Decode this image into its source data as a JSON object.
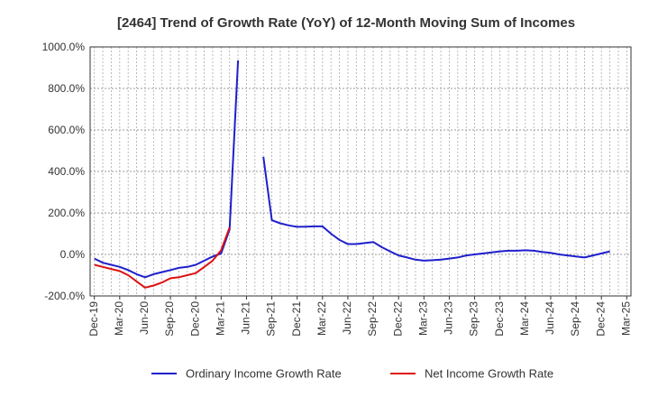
{
  "chart_data": {
    "type": "line",
    "title": "[2464]  Trend of Growth Rate (YoY) of 12-Month Moving Sum of Incomes",
    "xlabel": "",
    "ylabel": "",
    "ylim": [
      -200,
      1000
    ],
    "y_ticks": [
      -200,
      0,
      200,
      400,
      600,
      800,
      1000
    ],
    "y_tick_labels": [
      "-200.0%",
      "0.0%",
      "200.0%",
      "400.0%",
      "600.0%",
      "800.0%",
      "1000.0%"
    ],
    "x_tick_labels": [
      "Dec-19",
      "Mar-20",
      "Jun-20",
      "Sep-20",
      "Dec-20",
      "Mar-21",
      "Jun-21",
      "Sep-21",
      "Dec-21",
      "Mar-22",
      "Jun-22",
      "Sep-22",
      "Dec-22",
      "Mar-23",
      "Jun-23",
      "Sep-23",
      "Dec-23",
      "Mar-24",
      "Jun-24",
      "Sep-24",
      "Dec-24",
      "Mar-25"
    ],
    "grid": true,
    "legend_position": "bottom",
    "x": [
      "Dec-19",
      "Jan-20",
      "Feb-20",
      "Mar-20",
      "Apr-20",
      "May-20",
      "Jun-20",
      "Jul-20",
      "Aug-20",
      "Sep-20",
      "Oct-20",
      "Nov-20",
      "Dec-20",
      "Jan-21",
      "Feb-21",
      "Mar-21",
      "Apr-21",
      "May-21",
      "Jun-21",
      "Jul-21",
      "Aug-21",
      "Sep-21",
      "Oct-21",
      "Nov-21",
      "Dec-21",
      "Jan-22",
      "Feb-22",
      "Mar-22",
      "Apr-22",
      "May-22",
      "Jun-22",
      "Jul-22",
      "Aug-22",
      "Sep-22",
      "Oct-22",
      "Nov-22",
      "Dec-22",
      "Jan-23",
      "Feb-23",
      "Mar-23",
      "Apr-23",
      "May-23",
      "Jun-23",
      "Jul-23",
      "Aug-23",
      "Sep-23",
      "Oct-23",
      "Nov-23",
      "Dec-23",
      "Jan-24",
      "Feb-24",
      "Mar-24",
      "Apr-24",
      "May-24",
      "Jun-24",
      "Jul-24",
      "Aug-24",
      "Sep-24",
      "Oct-24",
      "Nov-24",
      "Dec-24",
      "Jan-25",
      "Feb-25",
      "Mar-25"
    ],
    "series": [
      {
        "name": "Ordinary Income Growth Rate",
        "color": "#1f1fcc",
        "values": [
          -20,
          -40,
          -50,
          -60,
          -75,
          -95,
          -110,
          -95,
          -85,
          -75,
          -65,
          -60,
          -50,
          -30,
          -10,
          5,
          120,
          935,
          null,
          null,
          470,
          165,
          150,
          140,
          133,
          134,
          135,
          135,
          100,
          70,
          50,
          50,
          55,
          60,
          35,
          15,
          -5,
          -15,
          -25,
          -30,
          -28,
          -25,
          -20,
          -15,
          -5,
          0,
          5,
          10,
          15,
          18,
          18,
          20,
          18,
          12,
          8,
          0,
          -5,
          -10,
          -15,
          -5,
          5,
          15,
          null,
          null
        ]
      },
      {
        "name": "Net Income Growth Rate",
        "color": "#dd1111",
        "values": [
          -50,
          -60,
          -70,
          -80,
          -100,
          -130,
          -160,
          -150,
          -135,
          -115,
          -110,
          -100,
          -90,
          -60,
          -30,
          20,
          130,
          null,
          null,
          null,
          null,
          null,
          null,
          null,
          null,
          null,
          null,
          null,
          null,
          null,
          null,
          null,
          null,
          null,
          null,
          null,
          null,
          null,
          null,
          null,
          null,
          null,
          null,
          null,
          null,
          null,
          null,
          null,
          null,
          null,
          null,
          null,
          null,
          null,
          null,
          null,
          null,
          null,
          null,
          null,
          null,
          null,
          null,
          null
        ]
      }
    ]
  },
  "legend": {
    "items": [
      {
        "label": "Ordinary Income Growth Rate",
        "color": "#1f1fcc"
      },
      {
        "label": "Net Income Growth Rate",
        "color": "#dd1111"
      }
    ]
  }
}
